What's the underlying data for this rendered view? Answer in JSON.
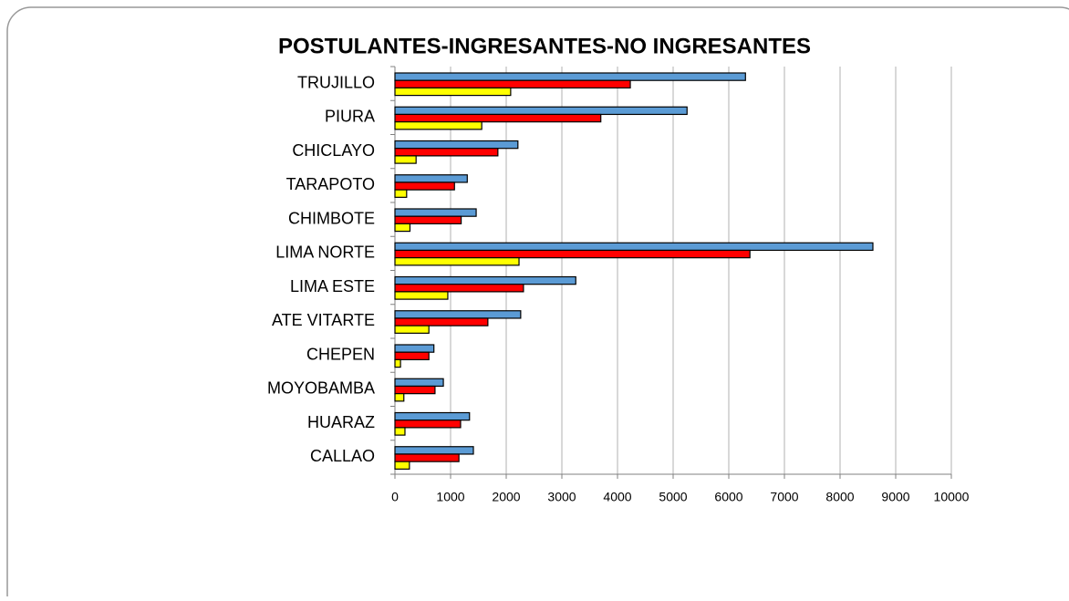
{
  "chart_data": {
    "type": "bar",
    "orientation": "horizontal",
    "title": "POSTULANTES-INGRESANTES-NO INGRESANTES",
    "categories": [
      "TRUJILLO",
      "PIURA",
      "CHICLAYO",
      "TARAPOTO",
      "CHIMBOTE",
      "LIMA NORTE",
      "LIMA ESTE",
      "ATE VITARTE",
      "CHEPEN",
      "MOYOBAMBA",
      "HUARAZ",
      "CALLAO"
    ],
    "series": [
      {
        "color": "#5b9bd5",
        "values": [
          6300,
          5250,
          2210,
          1300,
          1460,
          8590,
          3250,
          2260,
          700,
          870,
          1340,
          1410
        ]
      },
      {
        "color": "#ff0000",
        "values": [
          4230,
          3700,
          1850,
          1070,
          1190,
          6380,
          2310,
          1670,
          610,
          720,
          1180,
          1150
        ]
      },
      {
        "color": "#ffff00",
        "values": [
          2080,
          1560,
          380,
          210,
          270,
          2230,
          950,
          610,
          100,
          160,
          180,
          260
        ]
      }
    ],
    "xlim": [
      0,
      10000
    ],
    "xticks": [
      0,
      1000,
      2000,
      3000,
      4000,
      5000,
      6000,
      7000,
      8000,
      9000,
      10000
    ],
    "grid": true
  }
}
